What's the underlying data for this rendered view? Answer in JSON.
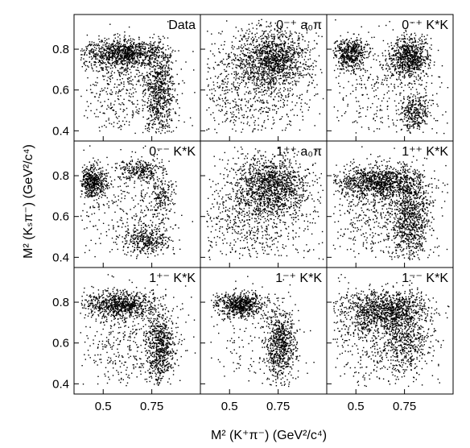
{
  "chart_data": {
    "type": "scatter",
    "layout": "3x3 grid of scatter panels sharing axes",
    "xlabel": "M² (K⁺π⁻)  (GeV²/c⁴)",
    "ylabel": "M² (Kₛπ⁻)  (GeV²/c⁴)",
    "xlim": [
      0.35,
      1.0
    ],
    "ylim": [
      0.35,
      0.97
    ],
    "x_ticks": [
      "0.5",
      "0.75"
    ],
    "x_tick_values": [
      0.5,
      0.75
    ],
    "y_ticks": [
      "0.4",
      "0.6",
      "0.8"
    ],
    "y_tick_values": [
      0.4,
      0.6,
      0.8
    ],
    "marker_color": "#000000",
    "panels": [
      {
        "label": "Data",
        "points": 2200,
        "clusters": [
          {
            "cx": 0.6,
            "cy": 0.78,
            "sx": 0.1,
            "sy": 0.035,
            "w": 0.45
          },
          {
            "cx": 0.79,
            "cy": 0.6,
            "sx": 0.035,
            "sy": 0.11,
            "w": 0.3
          },
          {
            "cx": 0.62,
            "cy": 0.6,
            "sx": 0.14,
            "sy": 0.13,
            "w": 0.25
          }
        ]
      },
      {
        "label": "0⁻⁺ a₀π",
        "points": 2000,
        "clusters": [
          {
            "cx": 0.72,
            "cy": 0.76,
            "sx": 0.09,
            "sy": 0.07,
            "w": 0.55
          },
          {
            "cx": 0.62,
            "cy": 0.62,
            "sx": 0.16,
            "sy": 0.14,
            "w": 0.45
          }
        ]
      },
      {
        "label": "0⁻⁺ K*K",
        "points": 1900,
        "clusters": [
          {
            "cx": 0.47,
            "cy": 0.78,
            "sx": 0.04,
            "sy": 0.04,
            "w": 0.25
          },
          {
            "cx": 0.77,
            "cy": 0.76,
            "sx": 0.05,
            "sy": 0.05,
            "w": 0.4
          },
          {
            "cx": 0.8,
            "cy": 0.49,
            "sx": 0.04,
            "sy": 0.045,
            "w": 0.17
          },
          {
            "cx": 0.62,
            "cy": 0.62,
            "sx": 0.15,
            "sy": 0.13,
            "w": 0.18
          }
        ]
      },
      {
        "label": "0⁻⁻ K*K",
        "points": 1600,
        "clusters": [
          {
            "cx": 0.45,
            "cy": 0.77,
            "sx": 0.035,
            "sy": 0.04,
            "w": 0.28
          },
          {
            "cx": 0.68,
            "cy": 0.83,
            "sx": 0.06,
            "sy": 0.025,
            "w": 0.16
          },
          {
            "cx": 0.8,
            "cy": 0.7,
            "sx": 0.03,
            "sy": 0.06,
            "w": 0.12
          },
          {
            "cx": 0.72,
            "cy": 0.49,
            "sx": 0.06,
            "sy": 0.035,
            "w": 0.24
          },
          {
            "cx": 0.62,
            "cy": 0.62,
            "sx": 0.15,
            "sy": 0.13,
            "w": 0.2
          }
        ]
      },
      {
        "label": "1⁺⁺ a₀π",
        "points": 2000,
        "clusters": [
          {
            "cx": 0.72,
            "cy": 0.75,
            "sx": 0.09,
            "sy": 0.07,
            "w": 0.55
          },
          {
            "cx": 0.62,
            "cy": 0.62,
            "sx": 0.16,
            "sy": 0.14,
            "w": 0.45
          }
        ]
      },
      {
        "label": "1⁺⁺ K*K",
        "points": 2400,
        "clusters": [
          {
            "cx": 0.62,
            "cy": 0.77,
            "sx": 0.12,
            "sy": 0.04,
            "w": 0.45
          },
          {
            "cx": 0.78,
            "cy": 0.6,
            "sx": 0.045,
            "sy": 0.11,
            "w": 0.3
          },
          {
            "cx": 0.63,
            "cy": 0.6,
            "sx": 0.14,
            "sy": 0.12,
            "w": 0.25
          }
        ]
      },
      {
        "label": "1⁺⁻ K*K",
        "points": 1900,
        "clusters": [
          {
            "cx": 0.58,
            "cy": 0.79,
            "sx": 0.09,
            "sy": 0.03,
            "w": 0.4
          },
          {
            "cx": 0.79,
            "cy": 0.59,
            "sx": 0.035,
            "sy": 0.09,
            "w": 0.35
          },
          {
            "cx": 0.62,
            "cy": 0.6,
            "sx": 0.15,
            "sy": 0.13,
            "w": 0.25
          }
        ]
      },
      {
        "label": "1⁻⁺ K*K",
        "points": 1500,
        "clusters": [
          {
            "cx": 0.55,
            "cy": 0.79,
            "sx": 0.06,
            "sy": 0.03,
            "w": 0.45
          },
          {
            "cx": 0.76,
            "cy": 0.59,
            "sx": 0.04,
            "sy": 0.09,
            "w": 0.45
          },
          {
            "cx": 0.62,
            "cy": 0.62,
            "sx": 0.12,
            "sy": 0.12,
            "w": 0.1
          }
        ]
      },
      {
        "label": "1⁻⁻ K*K",
        "points": 2000,
        "clusters": [
          {
            "cx": 0.64,
            "cy": 0.76,
            "sx": 0.11,
            "sy": 0.05,
            "w": 0.5
          },
          {
            "cx": 0.75,
            "cy": 0.62,
            "sx": 0.06,
            "sy": 0.09,
            "w": 0.25
          },
          {
            "cx": 0.62,
            "cy": 0.62,
            "sx": 0.14,
            "sy": 0.12,
            "w": 0.25
          }
        ]
      }
    ]
  }
}
